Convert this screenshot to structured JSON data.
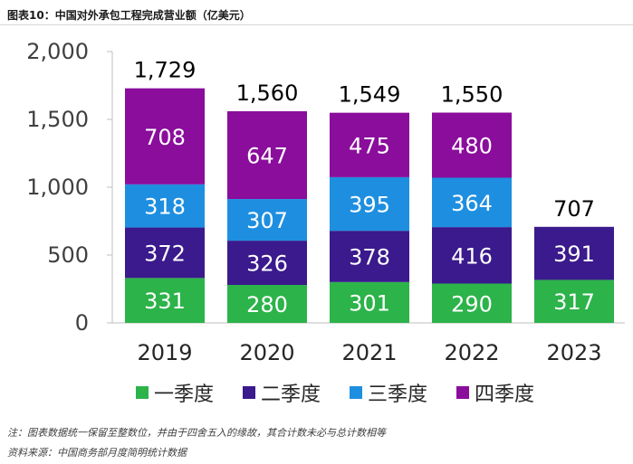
{
  "title": "图表10：中国对外承包工程完成营业额（亿美元）",
  "chart_data": {
    "type": "bar",
    "stacked": true,
    "categories": [
      "2019",
      "2020",
      "2021",
      "2022",
      "2023"
    ],
    "series": [
      {
        "name": "一季度",
        "color": "#2cb34a",
        "values": [
          331,
          280,
          301,
          290,
          317
        ]
      },
      {
        "name": "二季度",
        "color": "#3a1a8c",
        "values": [
          372,
          326,
          378,
          416,
          391
        ]
      },
      {
        "name": "三季度",
        "color": "#1e8fe0",
        "values": [
          318,
          307,
          395,
          364,
          null
        ]
      },
      {
        "name": "四季度",
        "color": "#8a0d9c",
        "values": [
          708,
          647,
          475,
          480,
          null
        ]
      }
    ],
    "totals": [
      1729,
      1560,
      1549,
      1550,
      707
    ],
    "total_labels": [
      "1,729",
      "1,560",
      "1,549",
      "1,550",
      "707"
    ],
    "ylim": [
      0,
      2000
    ],
    "yticks": [
      0,
      500,
      1000,
      1500,
      2000
    ],
    "ytick_labels": [
      "0",
      "500",
      "1,000",
      "1,500",
      "2,000"
    ],
    "grid": false,
    "legend_position": "bottom"
  },
  "notes": [
    "注：图表数据统一保留至整数位，并由于四舍五入的缘故，其合计数未必与总计数相等",
    "资料来源：中国商务部月度简明统计数据"
  ]
}
